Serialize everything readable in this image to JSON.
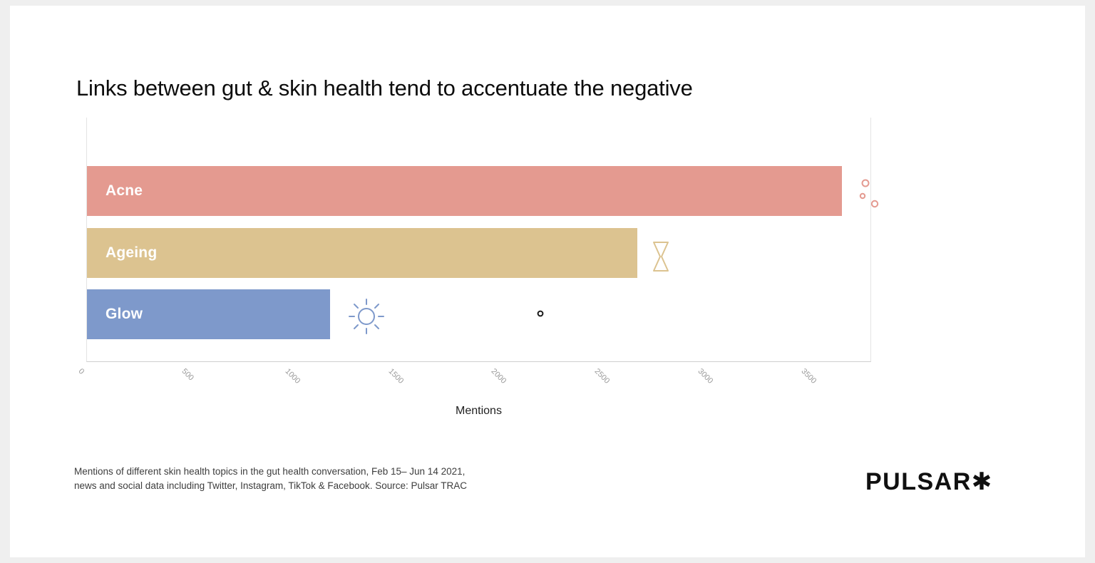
{
  "page": {
    "title": "Links between gut & skin health tend to accentuate the negative",
    "caption": {
      "line1": "Mentions of different skin health topics in the gut health conversation, Feb 15– Jun 14 2021,",
      "line2": "news and social data including Twitter, Instagram, TikTok & Facebook. Source: Pulsar TRAC"
    },
    "logo": {
      "text": "PULSAR",
      "asterisk": "✱"
    }
  },
  "colors": {
    "acne": "#E49A90",
    "ageing": "#DCC390",
    "glow": "#7E99CB",
    "axis_line": "#CFCFCF",
    "tick_text": "#9B9B9B",
    "dot_icon": "#1A1A1A"
  },
  "chart_data": {
    "type": "bar",
    "orientation": "horizontal",
    "title": "Links between gut & skin health tend to accentuate the negative",
    "categories": [
      "Acne",
      "Ageing",
      "Glow"
    ],
    "values": [
      3660,
      2670,
      1180
    ],
    "bar_colors": [
      "#E49A90",
      "#DCC390",
      "#7E99CB"
    ],
    "xlabel": "Mentions",
    "ylabel": "",
    "x_ticks": [
      0,
      500,
      1000,
      1500,
      2000,
      2500,
      3000,
      3500
    ],
    "xlim": [
      0,
      3800
    ],
    "grid": false,
    "legend": "none",
    "bar_label_position": "inside-left",
    "decorations": [
      "bubbles-icon near Acne bar end",
      "hourglass-icon near Ageing bar end",
      "sun-icon right of Glow bar",
      "small dot marker at ~2200 on Glow row"
    ]
  }
}
